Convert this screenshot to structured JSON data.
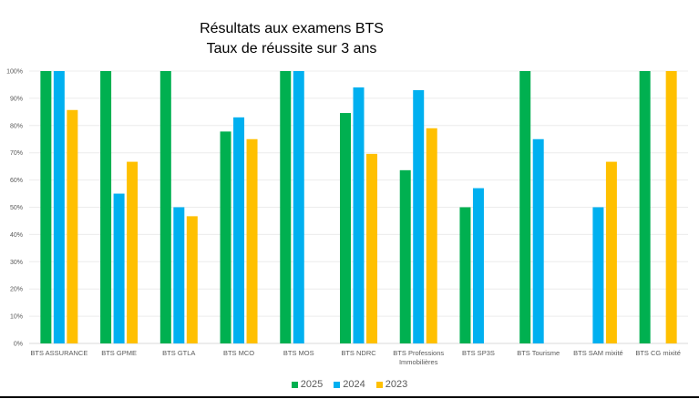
{
  "chart_data": {
    "type": "bar",
    "title": "Résultats aux examens BTS",
    "subtitle": "Taux de réussite sur 3 ans",
    "categories": [
      "BTS ASSURANCE",
      "BTS GPME",
      "BTS GTLA",
      "BTS MCO",
      "BTS MOS",
      "BTS NDRC",
      "BTS Professions Immobilières",
      "BTS SP3S",
      "BTS Tourisme",
      "BTS SAM mixité",
      "BTS CG mixité"
    ],
    "series": [
      {
        "name": "2025",
        "color": "#00B050",
        "values": [
          100,
          100,
          100,
          77.8,
          100,
          84.6,
          63.6,
          50,
          100,
          null,
          100
        ]
      },
      {
        "name": "2024",
        "color": "#00B0F0",
        "values": [
          100,
          55,
          50,
          83,
          100,
          94,
          93,
          57,
          75,
          50,
          null
        ]
      },
      {
        "name": "2023",
        "color": "#FFC000",
        "values": [
          85.7,
          66.7,
          46.7,
          75,
          null,
          69.6,
          79,
          null,
          null,
          66.7,
          100
        ]
      }
    ],
    "yticks": [
      "0%",
      "10%",
      "20%",
      "30%",
      "40%",
      "50%",
      "60%",
      "70%",
      "80%",
      "90%",
      "100%"
    ],
    "ylim": [
      0,
      100
    ],
    "xlabel": "",
    "ylabel": "",
    "grid": true,
    "legend_position": "bottom"
  }
}
